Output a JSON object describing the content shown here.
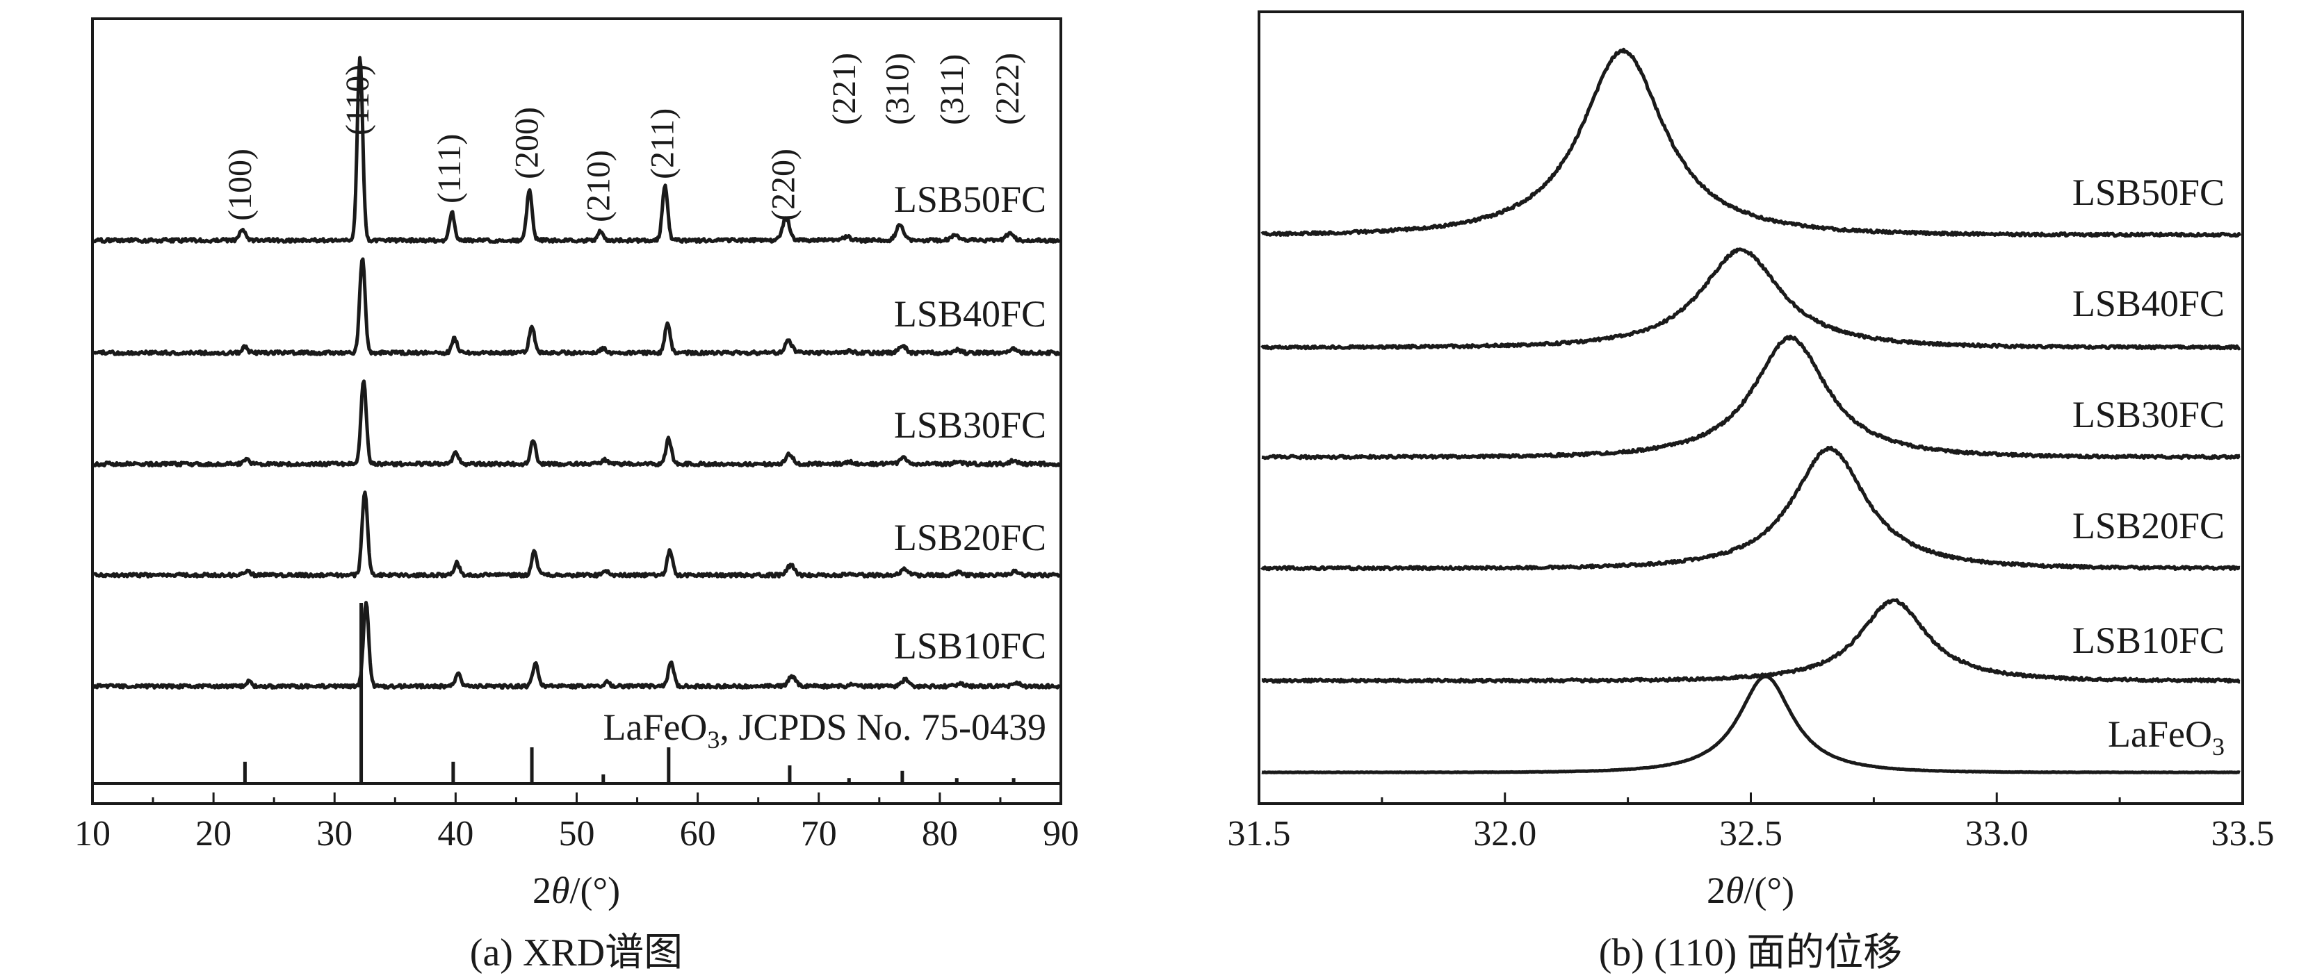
{
  "chart_data": [
    {
      "id": "a",
      "type": "line",
      "caption": "(a) XRD谱图",
      "xlabel": "2θ/(°)",
      "xlabel_parts": {
        "prefix": "2",
        "symbol": "θ",
        "suffix": "/(°)"
      },
      "xlim": [
        10,
        90
      ],
      "xticks": [
        10,
        20,
        30,
        40,
        50,
        60,
        70,
        80,
        90
      ],
      "grid": false,
      "reference": {
        "name": "LaFeO3, JCPDS No. 75-0439",
        "name_parts": {
          "main": "LaFeO",
          "sub": "3",
          "rest": ", JCPDS No. 75-0439"
        },
        "peaks": [
          {
            "x": 22.6,
            "h": 0.12
          },
          {
            "x": 32.2,
            "h": 1.0
          },
          {
            "x": 39.8,
            "h": 0.12
          },
          {
            "x": 46.3,
            "h": 0.2
          },
          {
            "x": 52.2,
            "h": 0.05
          },
          {
            "x": 57.6,
            "h": 0.2
          },
          {
            "x": 67.6,
            "h": 0.1
          },
          {
            "x": 72.5,
            "h": 0.03
          },
          {
            "x": 76.9,
            "h": 0.07
          },
          {
            "x": 81.4,
            "h": 0.03
          },
          {
            "x": 86.1,
            "h": 0.03
          }
        ]
      },
      "series": [
        {
          "name": "LSB10FC",
          "shift": 0.5
        },
        {
          "name": "LSB20FC",
          "shift": 0.4
        },
        {
          "name": "LSB30FC",
          "shift": 0.3
        },
        {
          "name": "LSB40FC",
          "shift": 0.2
        },
        {
          "name": "LSB50FC",
          "shift": 0.0
        }
      ],
      "base_peaks": [
        {
          "x": 22.4,
          "h": 0.06
        },
        {
          "x": 32.1,
          "h": 1.0
        },
        {
          "x": 39.7,
          "h": 0.15
        },
        {
          "x": 46.1,
          "h": 0.28
        },
        {
          "x": 52.0,
          "h": 0.05
        },
        {
          "x": 57.3,
          "h": 0.3
        },
        {
          "x": 67.3,
          "h": 0.12
        },
        {
          "x": 72.3,
          "h": 0.02
        },
        {
          "x": 76.7,
          "h": 0.08
        },
        {
          "x": 81.2,
          "h": 0.03
        },
        {
          "x": 85.8,
          "h": 0.04
        }
      ],
      "annotations": [
        {
          "text": "(100)",
          "x": 22.4
        },
        {
          "text": "(110)",
          "x": 32.1
        },
        {
          "text": "(111)",
          "x": 39.7
        },
        {
          "text": "(200)",
          "x": 46.1
        },
        {
          "text": "(210)",
          "x": 52.0
        },
        {
          "text": "(211)",
          "x": 57.3
        },
        {
          "text": "(220)",
          "x": 67.3
        },
        {
          "text": "(221)",
          "x": 72.3
        },
        {
          "text": "(310)",
          "x": 76.7
        },
        {
          "text": "(311)",
          "x": 81.2
        },
        {
          "text": "(222)",
          "x": 85.8
        }
      ]
    },
    {
      "id": "b",
      "type": "line",
      "caption": "(b) (110) 面的位移",
      "xlabel": "2θ/(°)",
      "xlabel_parts": {
        "prefix": "2",
        "symbol": "θ",
        "suffix": "/(°)"
      },
      "xlim": [
        31.5,
        33.5
      ],
      "xticks": [
        31.5,
        32.0,
        32.5,
        33.0,
        33.5
      ],
      "xtick_labels": [
        "31.5",
        "32.0",
        "32.5",
        "33.0",
        "33.5"
      ],
      "grid": false,
      "series": [
        {
          "name": "LaFeO3",
          "name_parts": {
            "main": "LaFeO",
            "sub": "3"
          },
          "center": 32.53,
          "width": 0.085
        },
        {
          "name": "LSB10FC",
          "center": 32.79,
          "width": 0.105
        },
        {
          "name": "LSB20FC",
          "center": 32.66,
          "width": 0.115
        },
        {
          "name": "LSB30FC",
          "center": 32.58,
          "width": 0.115
        },
        {
          "name": "LSB40FC",
          "center": 32.48,
          "width": 0.125
        },
        {
          "name": "LSB50FC",
          "center": 32.24,
          "width": 0.13
        }
      ]
    }
  ]
}
